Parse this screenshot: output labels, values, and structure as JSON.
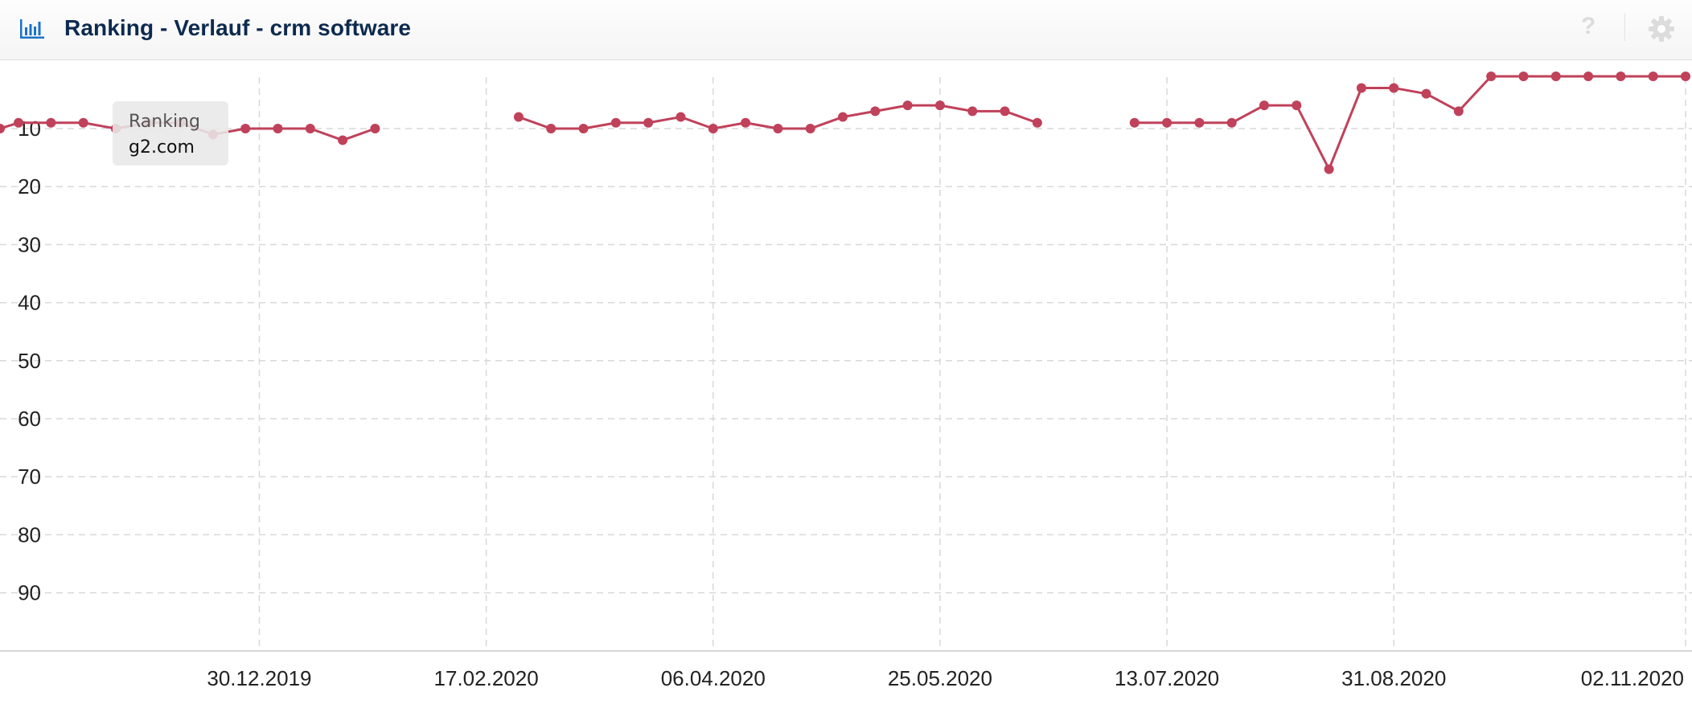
{
  "header": {
    "title": "Ranking - Verlauf - crm software",
    "chart_icon": "bar-chart-icon",
    "help_label": "?",
    "help_icon": "help-icon",
    "settings_icon": "gear-icon"
  },
  "tooltip": {
    "label": "Ranking",
    "value": "g2.com"
  },
  "colors": {
    "series": "#c0415a",
    "grid": "#d8d8d8",
    "accent_icon": "#1a73c9",
    "title": "#0d2a4f"
  },
  "chart_data": {
    "type": "line",
    "title": "Ranking - Verlauf - crm software",
    "xlabel": "",
    "ylabel": "",
    "y_reversed": true,
    "ylim": [
      1,
      100
    ],
    "y_ticks": [
      "10",
      "20",
      "30",
      "40",
      "50",
      "60",
      "70",
      "80",
      "90"
    ],
    "x_ticks": [
      "30.12.2019",
      "17.02.2020",
      "06.04.2020",
      "25.05.2020",
      "13.07.2020",
      "31.08.2020",
      "02.11.2020"
    ],
    "x_tick_dates": [
      "2019-12-30",
      "2020-02-17",
      "2020-04-06",
      "2020-05-25",
      "2020-07-13",
      "2020-08-31",
      "2020-11-02"
    ],
    "x_start": "2019-11-04",
    "x_end": "2020-11-02",
    "grid": true,
    "legend": "none",
    "series": [
      {
        "name": "g2.com",
        "points": [
          [
            "2019-11-04",
            10
          ],
          [
            "2019-11-08",
            9
          ],
          [
            "2019-11-15",
            9
          ],
          [
            "2019-11-22",
            9
          ],
          [
            "2019-11-29",
            10
          ],
          [
            "2019-12-06",
            9
          ],
          [
            "2019-12-13",
            9
          ],
          [
            "2019-12-20",
            11
          ],
          [
            "2019-12-27",
            10
          ],
          [
            "2020-01-03",
            10
          ],
          [
            "2020-01-10",
            10
          ],
          [
            "2020-01-17",
            12
          ],
          [
            "2020-01-24",
            10
          ],
          null,
          [
            "2020-02-24",
            8
          ],
          [
            "2020-03-02",
            10
          ],
          [
            "2020-03-09",
            10
          ],
          [
            "2020-03-16",
            9
          ],
          [
            "2020-03-23",
            9
          ],
          [
            "2020-03-30",
            8
          ],
          [
            "2020-04-06",
            10
          ],
          [
            "2020-04-13",
            9
          ],
          [
            "2020-04-20",
            10
          ],
          [
            "2020-04-27",
            10
          ],
          [
            "2020-05-04",
            8
          ],
          [
            "2020-05-11",
            7
          ],
          [
            "2020-05-18",
            6
          ],
          [
            "2020-05-25",
            6
          ],
          [
            "2020-06-01",
            7
          ],
          [
            "2020-06-08",
            7
          ],
          [
            "2020-06-15",
            9
          ],
          null,
          [
            "2020-07-06",
            9
          ],
          [
            "2020-07-13",
            9
          ],
          [
            "2020-07-20",
            9
          ],
          [
            "2020-07-27",
            9
          ],
          [
            "2020-08-03",
            6
          ],
          [
            "2020-08-10",
            6
          ],
          [
            "2020-08-17",
            17
          ],
          [
            "2020-08-24",
            3
          ],
          [
            "2020-08-31",
            3
          ],
          [
            "2020-09-07",
            4
          ],
          [
            "2020-09-14",
            7
          ],
          [
            "2020-09-21",
            1
          ],
          [
            "2020-09-28",
            1
          ],
          [
            "2020-10-05",
            1
          ],
          [
            "2020-10-12",
            1
          ],
          [
            "2020-10-19",
            1
          ],
          [
            "2020-10-26",
            1
          ],
          [
            "2020-11-02",
            1
          ]
        ]
      }
    ]
  }
}
